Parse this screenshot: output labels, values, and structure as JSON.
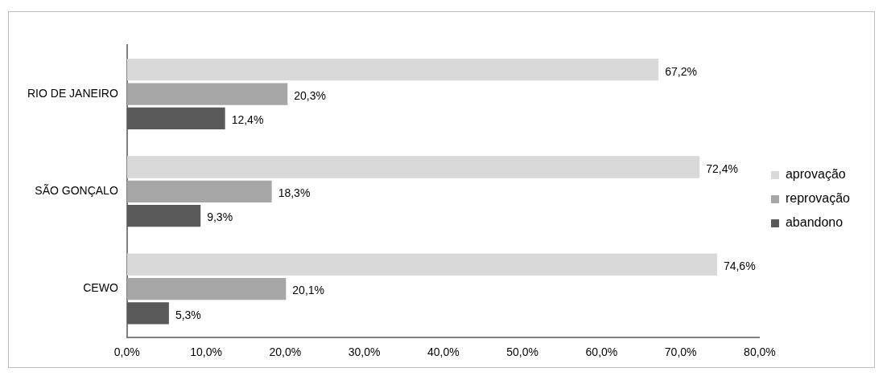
{
  "chart_data": {
    "type": "bar",
    "orientation": "horizontal",
    "categories": [
      "RIO DE JANEIRO",
      "SÃO GONÇALO",
      "CEWO"
    ],
    "series": [
      {
        "name": "aprovação",
        "color": "#d9d9d9",
        "values": [
          67.2,
          72.4,
          74.6
        ],
        "value_labels": [
          "67,2%",
          "72,4%",
          "74,6%"
        ]
      },
      {
        "name": "reprovação",
        "color": "#a6a6a6",
        "values": [
          20.3,
          18.3,
          20.1
        ],
        "value_labels": [
          "20,3%",
          "18,3%",
          "20,1%"
        ]
      },
      {
        "name": "abandono",
        "color": "#595959",
        "values": [
          12.4,
          9.3,
          5.3
        ],
        "value_labels": [
          "12,4%",
          "9,3%",
          "5,3%"
        ]
      }
    ],
    "xlim": [
      0,
      80
    ],
    "xticks": [
      {
        "value": 0,
        "label": "0,0%"
      },
      {
        "value": 10,
        "label": "10,0%"
      },
      {
        "value": 20,
        "label": "20,0%"
      },
      {
        "value": 30,
        "label": "30,0%"
      },
      {
        "value": 40,
        "label": "40,0%"
      },
      {
        "value": 50,
        "label": "50,0%"
      },
      {
        "value": 60,
        "label": "60,0%"
      },
      {
        "value": 70,
        "label": "70,0%"
      },
      {
        "value": 80,
        "label": "80,0%"
      }
    ],
    "grid": false,
    "legend": "right",
    "data_labels": true
  }
}
